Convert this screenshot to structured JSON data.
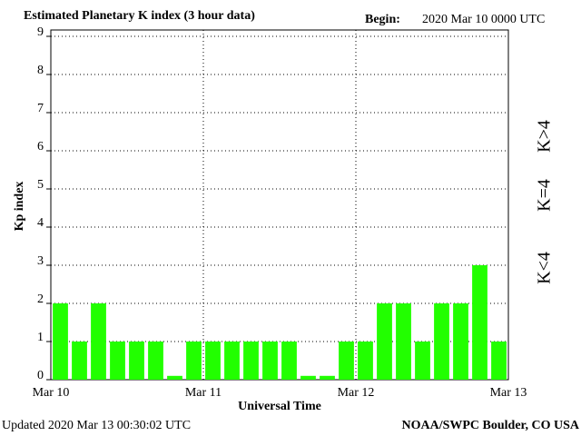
{
  "chart_data": {
    "type": "bar",
    "title": "Estimated Planetary K index (3 hour data)",
    "begin_label": "Begin:",
    "begin_value": "2020 Mar 10 0000 UTC",
    "ylabel": "Kp index",
    "xlabel": "Universal Time",
    "updated": "Updated 2020 Mar 13 00:30:02 UTC",
    "credit": "NOAA/SWPC Boulder, CO USA",
    "categories": [
      null,
      null,
      null,
      null,
      null,
      null,
      null,
      null,
      null,
      null,
      null,
      null,
      null,
      null,
      null,
      null,
      null,
      null,
      null,
      null,
      null,
      null,
      null,
      null
    ],
    "values": [
      2,
      1,
      2,
      1,
      1,
      1,
      0.1,
      1,
      1,
      1,
      1,
      1,
      1,
      0.1,
      0.1,
      1,
      1,
      2,
      2,
      1,
      2,
      2,
      3,
      1
    ],
    "color": "#22ff00",
    "xlim": [
      0,
      3
    ],
    "xticks": [
      {
        "value": 0,
        "label": "Mar 10"
      },
      {
        "value": 1,
        "label": "Mar 11"
      },
      {
        "value": 2,
        "label": "Mar 12"
      },
      {
        "value": 3,
        "label": "Mar 13"
      }
    ],
    "ylim": [
      0,
      9
    ],
    "yticks": [
      0,
      1,
      2,
      3,
      4,
      5,
      6,
      7,
      8,
      9
    ],
    "grid": true,
    "legend": [
      {
        "label": "K<4",
        "color": "#22ff00"
      },
      {
        "label": "K=4",
        "color": "#ffcc00"
      },
      {
        "label": "K>4",
        "color": "#ff3300"
      }
    ]
  }
}
